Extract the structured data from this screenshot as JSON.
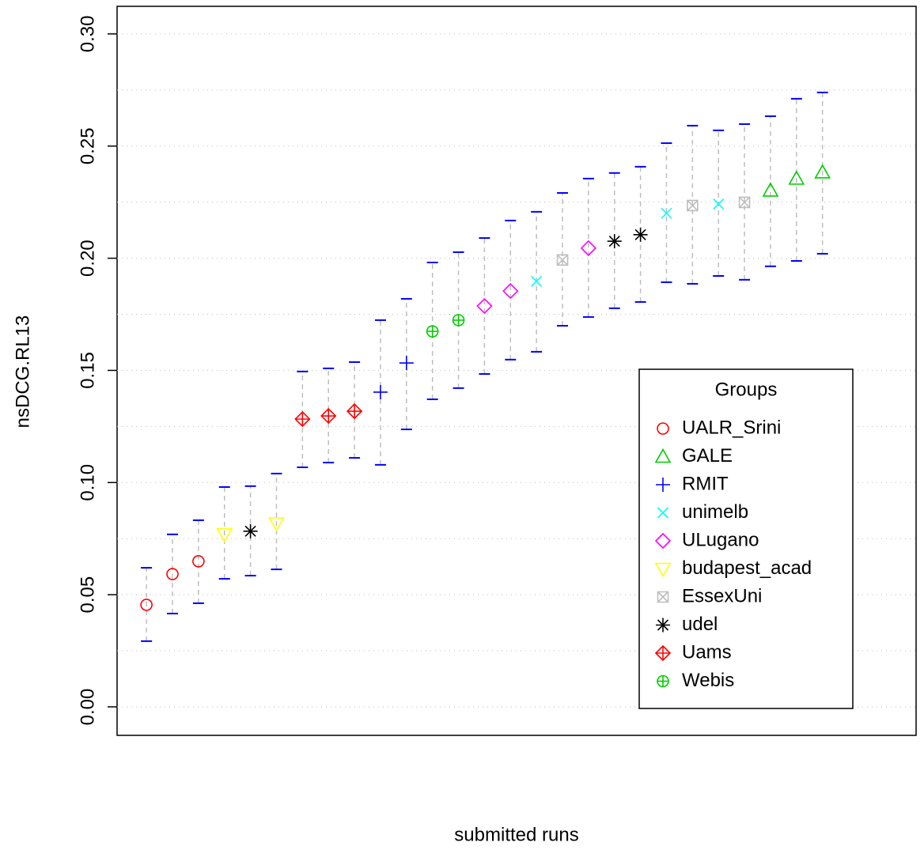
{
  "chart_data": {
    "type": "errorbar",
    "x_label": "submitted runs",
    "y_label": "nsDCG.RL13",
    "xlim": [
      -0.13,
      30.6
    ],
    "ylim": [
      -0.0127,
      0.3123
    ],
    "yticks": [
      {
        "value": 0,
        "label": "0.00"
      },
      0.05,
      {
        "value": 0.1,
        "label": "0.10"
      },
      0.15,
      {
        "value": 0.2,
        "label": "0.20"
      },
      0.25,
      {
        "value": 0.3,
        "label": "0.30"
      }
    ],
    "grid": true,
    "errorbar_color": "#bebebe",
    "cap_color": "#0000ff",
    "legend_title": "Groups",
    "legend_position": "bottom-right",
    "series": [
      {
        "name": "UALR_Srini",
        "color": "#ff0000",
        "marker": "circle",
        "x": [
          1,
          2,
          3
        ],
        "values": [
          0.0455,
          0.0592,
          0.0649
        ],
        "lower": [
          0.0293,
          0.0416,
          0.0462
        ],
        "upper": [
          0.062,
          0.0769,
          0.0832
        ]
      },
      {
        "name": "GALE",
        "color": "#00cd00",
        "marker": "triangle",
        "x": [
          25,
          26,
          27
        ],
        "values": [
          0.2302,
          0.2355,
          0.2383
        ],
        "lower": [
          0.1964,
          0.1988,
          0.202
        ],
        "upper": [
          0.2633,
          0.2711,
          0.2739
        ]
      },
      {
        "name": "RMIT",
        "color": "#0000ff",
        "marker": "plus",
        "x": [
          10,
          11
        ],
        "values": [
          0.1403,
          0.1533
        ],
        "lower": [
          0.1079,
          0.1237
        ],
        "upper": [
          0.1724,
          0.1819
        ]
      },
      {
        "name": "unimelb",
        "color": "#00ffff",
        "marker": "cross",
        "x": [
          16,
          21,
          23
        ],
        "values": [
          0.1897,
          0.22,
          0.2242
        ],
        "lower": [
          0.1583,
          0.1893,
          0.1921
        ],
        "upper": [
          0.2207,
          0.2513,
          0.257
        ]
      },
      {
        "name": "ULugano",
        "color": "#ff00ff",
        "marker": "diamond",
        "x": [
          14,
          15,
          18
        ],
        "values": [
          0.1787,
          0.1854,
          0.2045
        ],
        "lower": [
          0.1484,
          0.1548,
          0.1738
        ],
        "upper": [
          0.209,
          0.2168,
          0.2355
        ]
      },
      {
        "name": "budapest_acad",
        "color": "#ffff00",
        "marker": "triangle-down",
        "x": [
          4,
          6
        ],
        "values": [
          0.0769,
          0.0818
        ],
        "lower": [
          0.0571,
          0.0613
        ],
        "upper": [
          0.098,
          0.104
        ]
      },
      {
        "name": "EssexUni",
        "color": "#bebebe",
        "marker": "square-x",
        "x": [
          17,
          22,
          24
        ],
        "values": [
          0.1992,
          0.2235,
          0.2249
        ],
        "lower": [
          0.1699,
          0.1886,
          0.1904
        ],
        "upper": [
          0.2291,
          0.2591,
          0.2598
        ]
      },
      {
        "name": "udel",
        "color": "#000000",
        "marker": "asterisk",
        "x": [
          5,
          19,
          20
        ],
        "values": [
          0.0783,
          0.2076,
          0.2105
        ],
        "lower": [
          0.0585,
          0.1777,
          0.1805
        ],
        "upper": [
          0.0984,
          0.238,
          0.2408
        ]
      },
      {
        "name": "Uams",
        "color": "#ff0000",
        "marker": "diamond-plus",
        "x": [
          7,
          8,
          9
        ],
        "values": [
          0.1283,
          0.1297,
          0.1318
        ],
        "lower": [
          0.1068,
          0.1089,
          0.111
        ],
        "upper": [
          0.1495,
          0.1509,
          0.1537
        ]
      },
      {
        "name": "Webis",
        "color": "#00cd00",
        "marker": "circle-plus",
        "x": [
          12,
          13
        ],
        "values": [
          0.1674,
          0.1724
        ],
        "lower": [
          0.1371,
          0.1421
        ],
        "upper": [
          0.1981,
          0.2027
        ]
      }
    ]
  }
}
